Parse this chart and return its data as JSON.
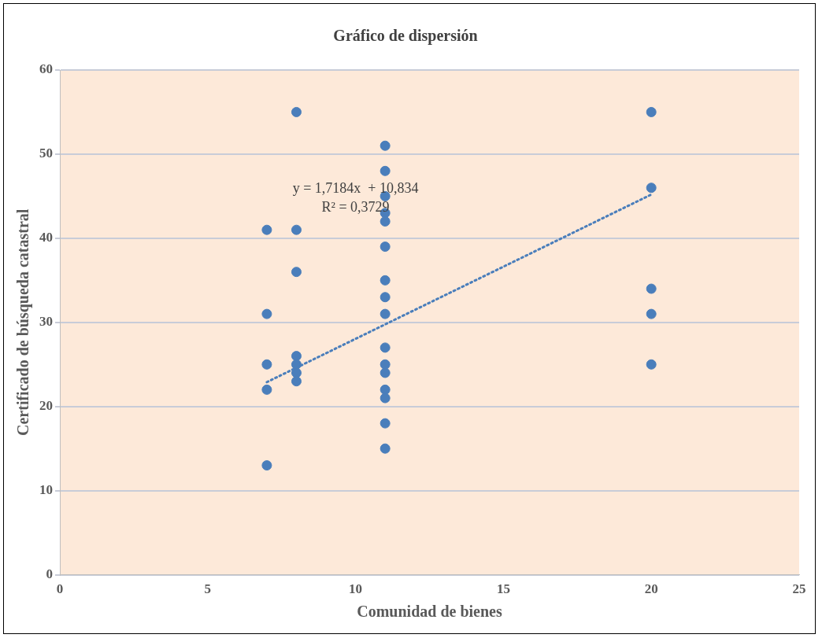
{
  "chart_data": {
    "type": "scatter",
    "title": "Gráfico de dispersión",
    "xlabel": "Comunidad de bienes",
    "ylabel": "Certificado de búsqueda catastral",
    "series": [
      {
        "color": "#4a7ebb",
        "x": [
          7,
          7,
          7,
          7,
          7,
          8,
          8,
          8,
          8,
          8,
          8,
          8,
          11,
          11,
          11,
          11,
          11,
          11,
          11,
          11,
          11,
          11,
          11,
          11,
          11,
          11,
          11,
          11,
          20,
          20,
          20,
          20,
          20
        ],
        "values": [
          41,
          31,
          25,
          22,
          13,
          55,
          41,
          36,
          26,
          25,
          24,
          23,
          51,
          48,
          45,
          43,
          42,
          39,
          35,
          33,
          31,
          27,
          25,
          24,
          22,
          21,
          18,
          15,
          55,
          46,
          34,
          31,
          25
        ]
      },
      {
        "type": "line",
        "color": "#4a7ebb",
        "line_style": "dotted",
        "marker": "none",
        "x": [
          7,
          20
        ],
        "values": [
          22.9,
          45.2
        ]
      }
    ],
    "marker": "circle",
    "xlim": [
      0,
      25
    ],
    "xticks": [
      0,
      5,
      10,
      15,
      20,
      25
    ],
    "ylim": [
      0,
      60
    ],
    "yticks": [
      0,
      10,
      20,
      30,
      40,
      50,
      60
    ],
    "grid": "y",
    "annotations": [
      "y = 1,7184x  + 10,834",
      "R² = 0,3729"
    ]
  }
}
